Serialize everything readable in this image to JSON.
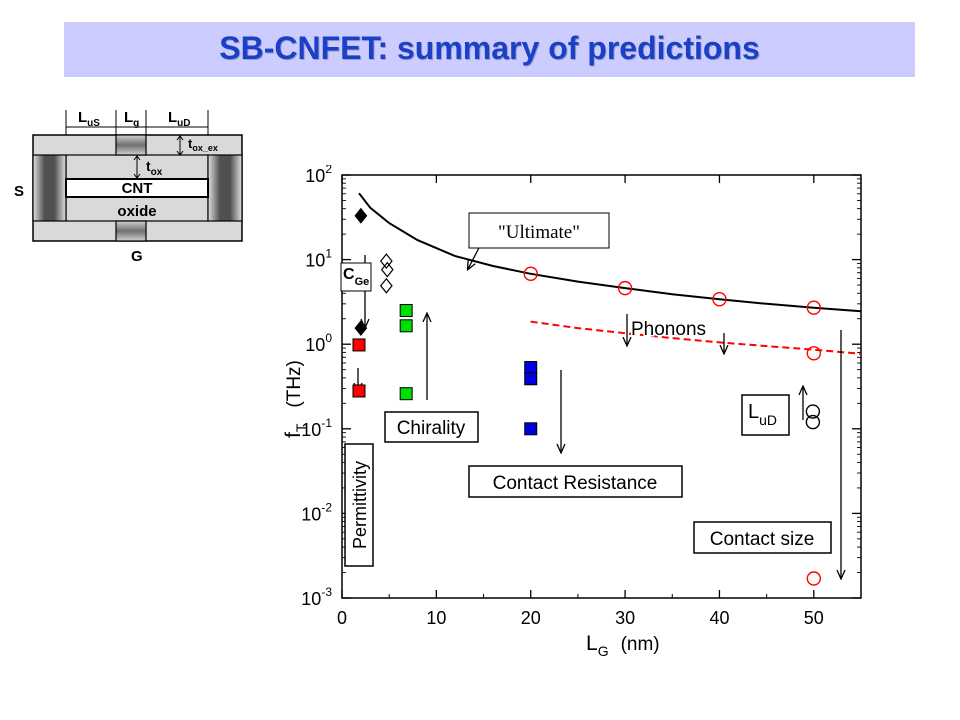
{
  "slide": {
    "title": "SB-CNFET: summary of predictions"
  },
  "device": {
    "l_us": "L",
    "l_us_sub": "uS",
    "l_g": "L",
    "l_g_sub": "g",
    "l_ud": "L",
    "l_ud_sub": "uD",
    "t_ox_ex": "t",
    "t_ox_ex_sub": "ox_ex",
    "t_ox": "t",
    "t_ox_sub": "ox",
    "source": "S",
    "gate": "G",
    "cnt": "CNT",
    "oxide": "oxide"
  },
  "chart_data": {
    "type": "scatter",
    "x_axis": {
      "label": "L",
      "label_sub": "G",
      "unit": "(nm)",
      "range": [
        0,
        55
      ],
      "ticks": [
        0,
        10,
        20,
        30,
        40,
        50
      ]
    },
    "y_axis": {
      "label": "f",
      "label_sub": "T",
      "unit": "(THz)",
      "scale": "log",
      "range": [
        0.001,
        100
      ],
      "ticks": [
        {
          "value": 100,
          "base": "10",
          "exp": "2"
        },
        {
          "value": 10,
          "base": "10",
          "exp": "1"
        },
        {
          "value": 1,
          "base": "10",
          "exp": "0"
        },
        {
          "value": 0.1,
          "base": "10",
          "exp": "-1"
        },
        {
          "value": 0.01,
          "base": "10",
          "exp": "-2"
        },
        {
          "value": 0.001,
          "base": "10",
          "exp": "-3"
        }
      ]
    },
    "curves": [
      {
        "style": "solid",
        "color": "#000000",
        "points": [
          [
            1.8,
            61
          ],
          [
            3,
            41
          ],
          [
            5,
            27
          ],
          [
            8,
            17
          ],
          [
            12,
            11
          ],
          [
            16,
            8.4
          ],
          [
            20,
            6.8
          ],
          [
            25,
            5.5
          ],
          [
            30,
            4.6
          ],
          [
            35,
            3.9
          ],
          [
            40,
            3.4
          ],
          [
            45,
            3.0
          ],
          [
            50,
            2.7
          ],
          [
            55,
            2.45
          ]
        ]
      },
      {
        "style": "dashed",
        "color": "#ff0000",
        "points": [
          [
            20,
            1.85
          ],
          [
            25,
            1.55
          ],
          [
            30,
            1.35
          ],
          [
            35,
            1.18
          ],
          [
            40,
            1.05
          ],
          [
            45,
            0.95
          ],
          [
            50,
            0.86
          ],
          [
            55,
            0.77
          ]
        ]
      }
    ],
    "markers": [
      {
        "shape": "diamond",
        "fill": "#000000",
        "stroke": "#000000",
        "x": 2,
        "y": 33
      },
      {
        "shape": "diamond",
        "fill": "#000000",
        "stroke": "#000000",
        "x": 2,
        "y": 1.55
      },
      {
        "shape": "diamond",
        "fill": "none",
        "stroke": "#000000",
        "x": 4.7,
        "y": 9.6
      },
      {
        "shape": "diamond",
        "fill": "none",
        "stroke": "#000000",
        "x": 4.8,
        "y": 7.6
      },
      {
        "shape": "diamond",
        "fill": "none",
        "stroke": "#000000",
        "x": 4.7,
        "y": 4.9
      },
      {
        "shape": "square",
        "fill": "#ff0000",
        "stroke": "#000000",
        "x": 1.8,
        "y": 0.98
      },
      {
        "shape": "square",
        "fill": "#ff0000",
        "stroke": "#000000",
        "x": 1.8,
        "y": 0.28
      },
      {
        "shape": "square",
        "fill": "#00dd00",
        "stroke": "#000000",
        "x": 6.8,
        "y": 2.5
      },
      {
        "shape": "square",
        "fill": "#00dd00",
        "stroke": "#000000",
        "x": 6.8,
        "y": 1.65
      },
      {
        "shape": "square",
        "fill": "#00dd00",
        "stroke": "#000000",
        "x": 6.8,
        "y": 0.26
      },
      {
        "shape": "square",
        "fill": "#0000dd",
        "stroke": "#000000",
        "x": 20,
        "y": 0.53
      },
      {
        "shape": "square",
        "fill": "#0000dd",
        "stroke": "#000000",
        "x": 20,
        "y": 0.39
      },
      {
        "shape": "square",
        "fill": "#0000dd",
        "stroke": "#000000",
        "x": 20,
        "y": 0.1
      },
      {
        "shape": "circle",
        "fill": "none",
        "stroke": "#ff0000",
        "x": 20,
        "y": 6.8
      },
      {
        "shape": "circle",
        "fill": "none",
        "stroke": "#ff0000",
        "x": 30,
        "y": 4.6
      },
      {
        "shape": "circle",
        "fill": "none",
        "stroke": "#ff0000",
        "x": 40,
        "y": 3.4
      },
      {
        "shape": "circle",
        "fill": "none",
        "stroke": "#ff0000",
        "x": 50,
        "y": 2.7
      },
      {
        "shape": "circle",
        "fill": "none",
        "stroke": "#ff0000",
        "x": 50,
        "y": 0.78
      },
      {
        "shape": "circle",
        "fill": "none",
        "stroke": "#ff0000",
        "x": 50,
        "y": 0.0017
      },
      {
        "shape": "circle",
        "fill": "none",
        "stroke": "#000000",
        "x": 49.9,
        "y": 0.16
      },
      {
        "shape": "circle",
        "fill": "none",
        "stroke": "#000000",
        "x": 49.9,
        "y": 0.12
      }
    ],
    "annotations": {
      "ultimate": "\"Ultimate\"",
      "c_ge": "C",
      "c_ge_sub": "Ge",
      "chirality": "Chirality",
      "phonons": "Phonons",
      "contact_resistance": "Contact Resistance",
      "contact_size": "Contact size",
      "permittivity": "Permittivity",
      "l_ud": "L",
      "l_ud_sub": "uD"
    }
  }
}
